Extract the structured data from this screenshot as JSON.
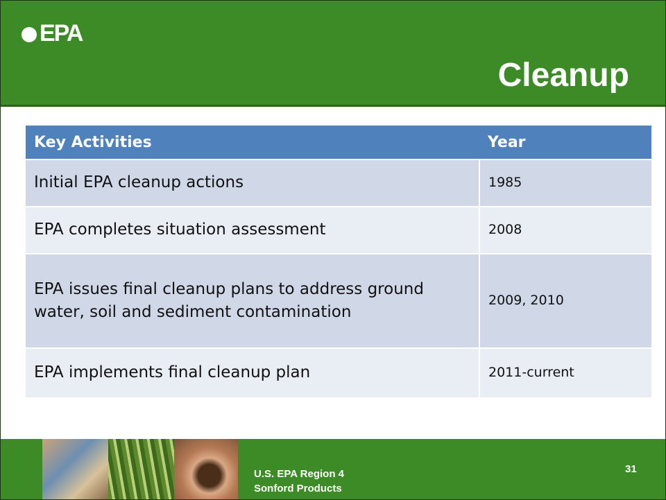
{
  "header": {
    "logo": "EPA",
    "title": "Cleanup"
  },
  "table": {
    "columns": [
      "Key Activities",
      "Year"
    ],
    "rows": [
      [
        "Initial EPA cleanup actions",
        "1985"
      ],
      [
        "EPA completes situation assessment",
        "2008"
      ],
      [
        "EPA issues final cleanup plans to address ground water, soil and sediment contamination",
        "2009, 2010"
      ],
      [
        "EPA implements final cleanup plan",
        "2011-current"
      ]
    ]
  },
  "footer": {
    "lines": [
      "U.S. EPA Region 4",
      "Sonford Products"
    ],
    "page": "31"
  }
}
